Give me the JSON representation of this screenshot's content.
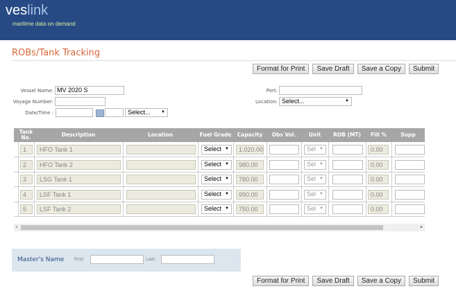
{
  "header": {
    "logo_a": "ves",
    "logo_b": "link",
    "tagline": "maritime data on demand"
  },
  "page_title": "ROBs/Tank Tracking",
  "toolbar": {
    "format": "Format for Print",
    "draft": "Save Draft",
    "copy": "Save a Copy",
    "submit": "Submit"
  },
  "form": {
    "vessel_label": "Vessel Name:",
    "vessel_value": "MV 2020 S",
    "voyage_label": "Voyage Number:",
    "date_label": "Date/Time :",
    "time_select": "Select...",
    "port_label": "Port:",
    "location_label": "Location:",
    "location_select": "Select..."
  },
  "table": {
    "headers": [
      "Tank No.",
      "Description",
      "Location",
      "Fuel Grade",
      "Capacity",
      "Obs Vol.",
      "Unit",
      "ROB (MT)",
      "Fill %",
      "Supp"
    ],
    "rows": [
      {
        "no": "1",
        "desc": "HFO Tank 1",
        "grade": "Select",
        "capacity": "1,020.00",
        "unit": "Sel",
        "fill": "0.00"
      },
      {
        "no": "2",
        "desc": "HFO Tank 2",
        "grade": "Select",
        "capacity": "980.00",
        "unit": "Sel",
        "fill": "0.00"
      },
      {
        "no": "3",
        "desc": "LSG Tank 1",
        "grade": "Select",
        "capacity": "780.00",
        "unit": "Sel",
        "fill": "0.00"
      },
      {
        "no": "4",
        "desc": "LSF Tank 1",
        "grade": "Select",
        "capacity": "990.00",
        "unit": "Sel",
        "fill": "0.00"
      },
      {
        "no": "5",
        "desc": "LSF Tank 2",
        "grade": "Select",
        "capacity": "750.00",
        "unit": "Sel",
        "fill": "0.00"
      }
    ]
  },
  "master": {
    "label": "Master's Name",
    "first": "First:",
    "last": "Last:"
  },
  "colors": {
    "header": "#274a85",
    "title": "#d9663a"
  }
}
